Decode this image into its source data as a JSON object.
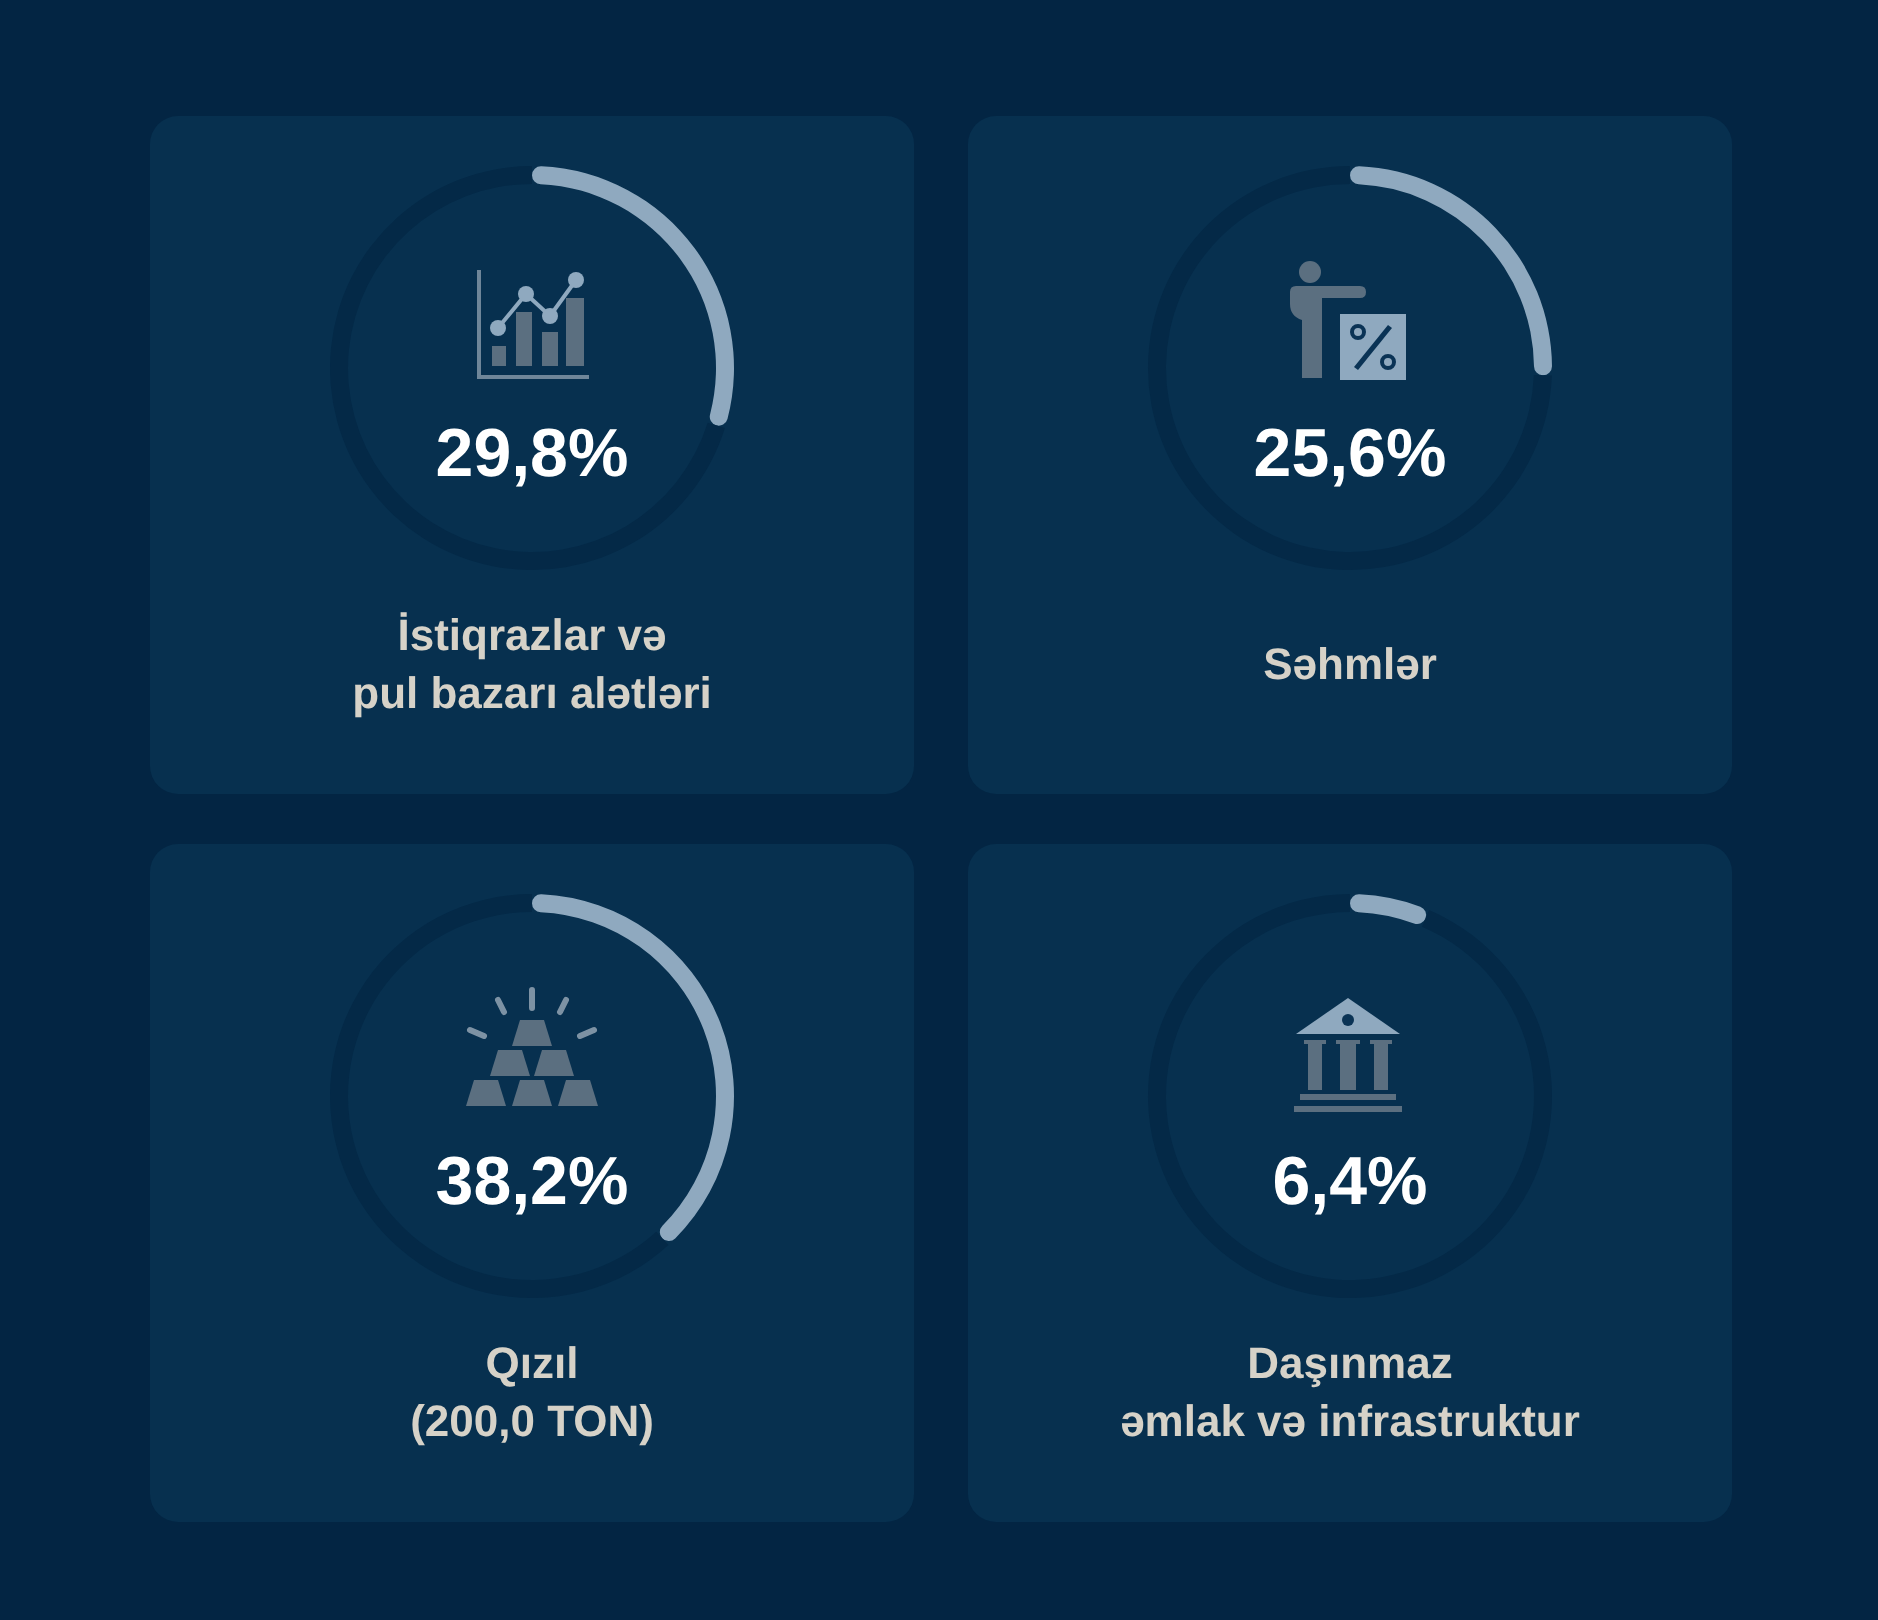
{
  "chart_data": [
    {
      "type": "donut",
      "title": "İstiqrazlar və\npul bazarı alətləri",
      "categories": [
        null,
        null
      ],
      "values": [
        29.8,
        70.2
      ],
      "colors": [
        "#8fa9bf",
        "#042947"
      ],
      "annotations": [
        "29,8%"
      ]
    },
    {
      "type": "donut",
      "title": "Səhmlər",
      "categories": [
        null,
        null
      ],
      "values": [
        25.6,
        74.4
      ],
      "colors": [
        "#8fa9bf",
        "#042947"
      ],
      "annotations": [
        "25,6%"
      ]
    },
    {
      "type": "donut",
      "title": "Qızıl\n(200,0 TON)",
      "categories": [
        null,
        null
      ],
      "values": [
        38.2,
        61.8
      ],
      "colors": [
        "#8fa9bf",
        "#042947"
      ],
      "annotations": [
        "38,2%"
      ]
    },
    {
      "type": "donut",
      "title": "Daşınmaz\nəmlak və infrastruktur",
      "categories": [
        null,
        null
      ],
      "values": [
        6.4,
        93.6
      ],
      "colors": [
        "#8fa9bf",
        "#042947"
      ],
      "annotations": [
        "6,4%"
      ]
    }
  ]
}
